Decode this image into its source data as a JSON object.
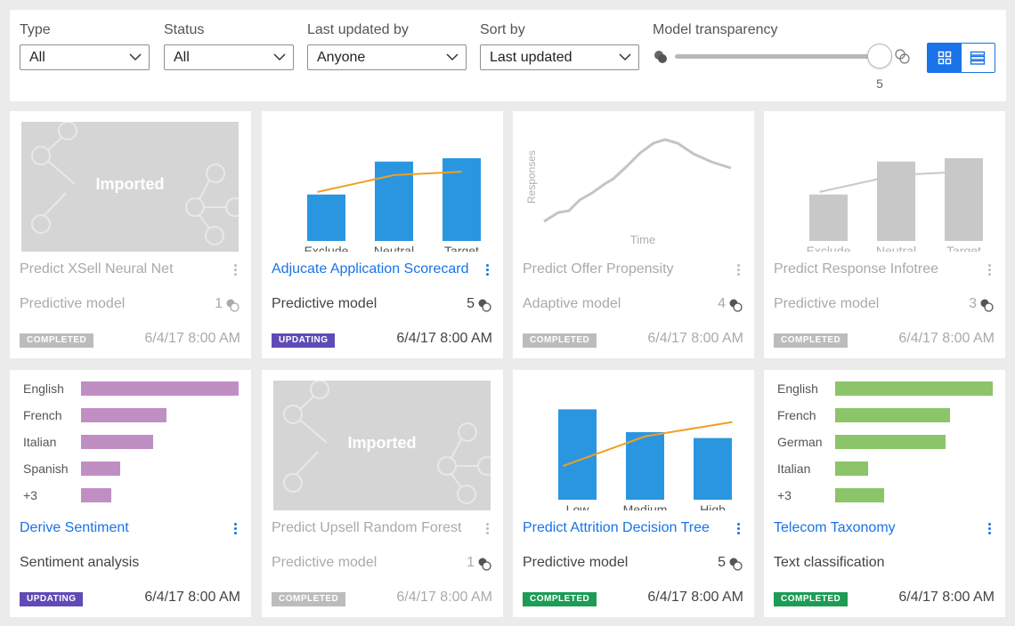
{
  "filters": {
    "type": {
      "label": "Type",
      "value": "All"
    },
    "status": {
      "label": "Status",
      "value": "All"
    },
    "updated_by": {
      "label": "Last updated by",
      "value": "Anyone"
    },
    "sort": {
      "label": "Sort by",
      "value": "Last updated"
    },
    "transparency": {
      "label": "Model transparency",
      "value": "5",
      "level": 1.0
    }
  },
  "colors": {
    "accent": "#1a73e8",
    "bar_blue": "#2b96e0",
    "line_orange": "#f0a020",
    "purple": "#bf8fc4",
    "green": "#8cc46a"
  },
  "cards": [
    {
      "name": "Predict XSell Neural Net",
      "type": "Predictive model",
      "count": "1",
      "status": "COMPLETED",
      "date": "6/4/17 8:00 AM",
      "thumb_text": "Imported"
    },
    {
      "name": "Adjucate Application Scorecard",
      "type": "Predictive model",
      "count": "5",
      "status": "UPDATING",
      "date": "6/4/17 8:00 AM",
      "chart": {
        "categories": [
          "Exclude",
          "Neutral",
          "Target"
        ],
        "values": [
          55,
          94,
          98
        ],
        "line": [
          58,
          78,
          82
        ]
      }
    },
    {
      "name": "Predict Offer Propensity",
      "type": "Adaptive model",
      "count": "4",
      "status": "COMPLETED",
      "date": "6/4/17 8:00 AM",
      "chart": {
        "ylabel": "Responses",
        "xlabel": "Time"
      }
    },
    {
      "name": "Predict Response Infotree",
      "type": "Predictive model",
      "count": "3",
      "status": "COMPLETED",
      "date": "6/4/17 8:00 AM",
      "chart": {
        "categories": [
          "Exclude",
          "Neutral",
          "Target"
        ],
        "values": [
          55,
          94,
          98
        ],
        "line": [
          58,
          78,
          82
        ]
      }
    },
    {
      "name": "Derive Sentiment",
      "type": "Sentiment analysis",
      "status": "UPDATING",
      "date": "6/4/17 8:00 AM",
      "chart": {
        "categories": [
          "English",
          "French",
          "Italian",
          "Spanish",
          "+3"
        ],
        "values": [
          100,
          54,
          46,
          25,
          19
        ]
      }
    },
    {
      "name": "Predict Upsell Random Forest",
      "type": "Predictive model",
      "count": "1",
      "status": "COMPLETED",
      "date": "6/4/17 8:00 AM",
      "thumb_text": "Imported"
    },
    {
      "name": "Predict Attrition Decision Tree",
      "type": "Predictive model",
      "count": "5",
      "status": "COMPLETED",
      "date": "6/4/17 8:00 AM",
      "chart": {
        "categories": [
          "Low",
          "Medium",
          "High"
        ],
        "values": [
          107,
          80,
          73
        ],
        "line": [
          40,
          75,
          92
        ]
      }
    },
    {
      "name": "Telecom Taxonomy",
      "type": "Text classification",
      "status": "COMPLETED",
      "date": "6/4/17 8:00 AM",
      "chart": {
        "categories": [
          "English",
          "French",
          "German",
          "Italian",
          "+3"
        ],
        "values": [
          100,
          73,
          70,
          21,
          31
        ]
      }
    }
  ]
}
